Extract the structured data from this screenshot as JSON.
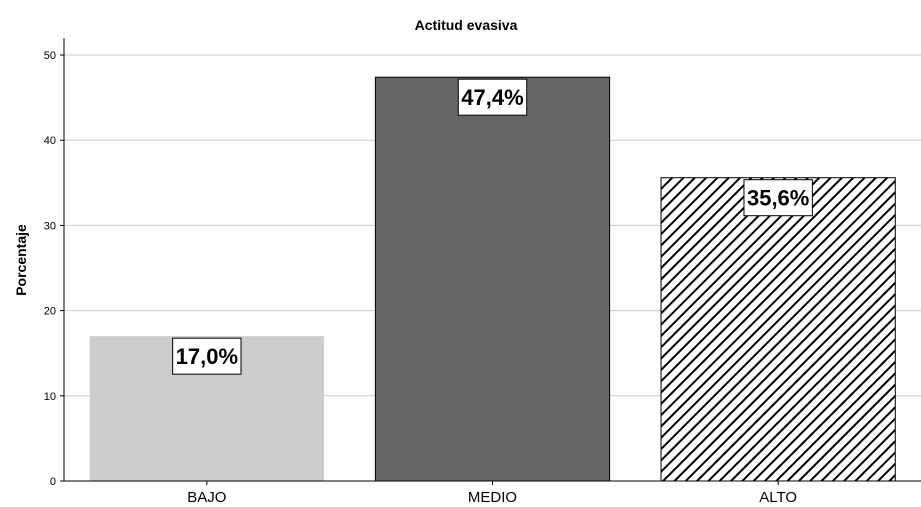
{
  "chart_data": {
    "type": "bar",
    "title": "Actitud evasiva",
    "xlabel": "",
    "ylabel": "Porcentaje",
    "categories": [
      "BAJO",
      "MEDIO",
      "ALTO"
    ],
    "values": [
      17.0,
      47.4,
      35.6
    ],
    "data_labels": [
      "17,0%",
      "47,4%",
      "35,6%"
    ],
    "ylim": [
      0,
      52
    ],
    "yticks": [
      0,
      10,
      20,
      30,
      40,
      50
    ],
    "ytick_labels": [
      "0",
      "10",
      "20",
      "30",
      "40",
      "50"
    ],
    "grid": true,
    "legend": "none",
    "bar_styles": [
      {
        "fill": "#cccccc",
        "pattern": "solid"
      },
      {
        "fill": "#666666",
        "pattern": "solid"
      },
      {
        "fill": "#ffffff",
        "pattern": "diagonal-hatch"
      }
    ],
    "gridline_color": "#c8c8c8",
    "axis_color": "#000000"
  }
}
